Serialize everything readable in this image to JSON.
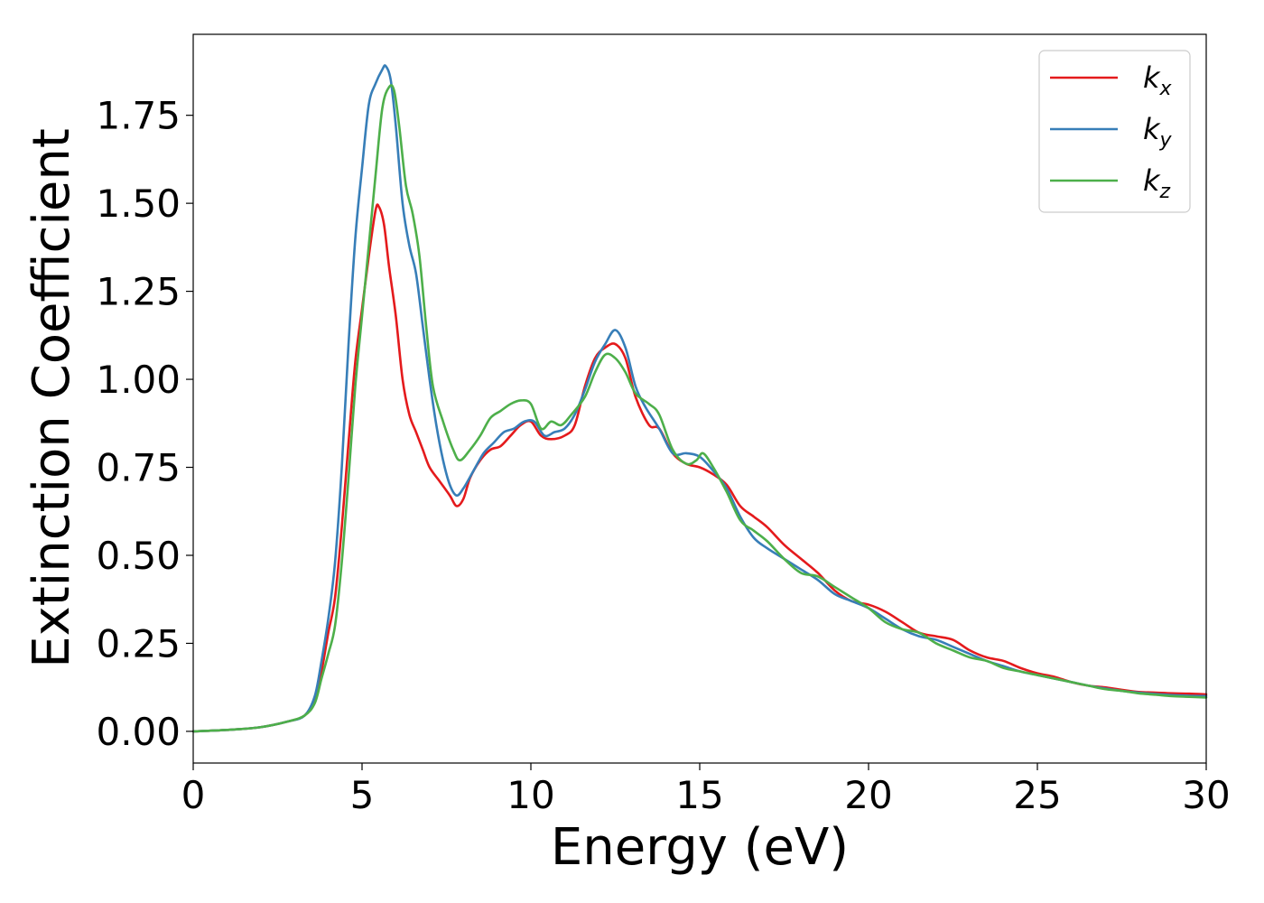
{
  "chart_data": {
    "type": "line",
    "title": "",
    "xlabel": "Energy (eV)",
    "ylabel": "Extinction Coefficient",
    "xlim": [
      0,
      30
    ],
    "ylim": [
      -0.09,
      1.98
    ],
    "xticks": [
      0,
      5,
      10,
      15,
      20,
      25,
      30
    ],
    "yticks": [
      0.0,
      0.25,
      0.5,
      0.75,
      1.0,
      1.25,
      1.5,
      1.75
    ],
    "ytick_labels": [
      "0.00",
      "0.25",
      "0.50",
      "0.75",
      "1.00",
      "1.25",
      "1.50",
      "1.75"
    ],
    "grid": false,
    "legend_position": "top-right",
    "series": [
      {
        "name": "k",
        "subscript": "x",
        "color": "#e41a1c",
        "points": [
          [
            0,
            0
          ],
          [
            1,
            0.004
          ],
          [
            2,
            0.012
          ],
          [
            2.8,
            0.028
          ],
          [
            3.3,
            0.045
          ],
          [
            3.6,
            0.09
          ],
          [
            3.8,
            0.17
          ],
          [
            4,
            0.28
          ],
          [
            4.2,
            0.38
          ],
          [
            4.4,
            0.58
          ],
          [
            4.6,
            0.82
          ],
          [
            4.8,
            1.05
          ],
          [
            5,
            1.2
          ],
          [
            5.2,
            1.35
          ],
          [
            5.4,
            1.48
          ],
          [
            5.5,
            1.49
          ],
          [
            5.65,
            1.44
          ],
          [
            5.8,
            1.32
          ],
          [
            6,
            1.18
          ],
          [
            6.2,
            1.0
          ],
          [
            6.4,
            0.9
          ],
          [
            6.6,
            0.85
          ],
          [
            6.8,
            0.8
          ],
          [
            7,
            0.75
          ],
          [
            7.3,
            0.71
          ],
          [
            7.6,
            0.67
          ],
          [
            7.8,
            0.64
          ],
          [
            8,
            0.66
          ],
          [
            8.2,
            0.72
          ],
          [
            8.5,
            0.77
          ],
          [
            8.8,
            0.8
          ],
          [
            9.1,
            0.81
          ],
          [
            9.4,
            0.84
          ],
          [
            9.7,
            0.87
          ],
          [
            10,
            0.88
          ],
          [
            10.3,
            0.84
          ],
          [
            10.6,
            0.83
          ],
          [
            11,
            0.84
          ],
          [
            11.3,
            0.87
          ],
          [
            11.6,
            0.98
          ],
          [
            11.9,
            1.06
          ],
          [
            12.2,
            1.09
          ],
          [
            12.5,
            1.1
          ],
          [
            12.8,
            1.06
          ],
          [
            13.1,
            0.95
          ],
          [
            13.5,
            0.87
          ],
          [
            13.8,
            0.86
          ],
          [
            14.2,
            0.79
          ],
          [
            14.6,
            0.76
          ],
          [
            15,
            0.75
          ],
          [
            15.4,
            0.73
          ],
          [
            15.8,
            0.7
          ],
          [
            16.2,
            0.64
          ],
          [
            16.6,
            0.61
          ],
          [
            17,
            0.58
          ],
          [
            17.5,
            0.53
          ],
          [
            18,
            0.49
          ],
          [
            18.5,
            0.45
          ],
          [
            19,
            0.4
          ],
          [
            19.5,
            0.37
          ],
          [
            20,
            0.36
          ],
          [
            20.5,
            0.34
          ],
          [
            21,
            0.31
          ],
          [
            21.5,
            0.28
          ],
          [
            22,
            0.27
          ],
          [
            22.5,
            0.26
          ],
          [
            23,
            0.23
          ],
          [
            23.5,
            0.21
          ],
          [
            24,
            0.2
          ],
          [
            24.5,
            0.18
          ],
          [
            25,
            0.165
          ],
          [
            25.5,
            0.155
          ],
          [
            26,
            0.14
          ],
          [
            26.5,
            0.13
          ],
          [
            27,
            0.125
          ],
          [
            27.5,
            0.118
          ],
          [
            28,
            0.112
          ],
          [
            28.5,
            0.11
          ],
          [
            29,
            0.108
          ],
          [
            29.5,
            0.107
          ],
          [
            30,
            0.105
          ]
        ]
      },
      {
        "name": "k",
        "subscript": "y",
        "color": "#377eb8",
        "points": [
          [
            0,
            0
          ],
          [
            1,
            0.004
          ],
          [
            2,
            0.012
          ],
          [
            2.8,
            0.028
          ],
          [
            3.3,
            0.045
          ],
          [
            3.6,
            0.1
          ],
          [
            3.8,
            0.2
          ],
          [
            4,
            0.32
          ],
          [
            4.2,
            0.48
          ],
          [
            4.4,
            0.75
          ],
          [
            4.6,
            1.1
          ],
          [
            4.8,
            1.4
          ],
          [
            5,
            1.6
          ],
          [
            5.2,
            1.78
          ],
          [
            5.4,
            1.84
          ],
          [
            5.6,
            1.88
          ],
          [
            5.7,
            1.89
          ],
          [
            5.85,
            1.85
          ],
          [
            6,
            1.72
          ],
          [
            6.2,
            1.5
          ],
          [
            6.4,
            1.38
          ],
          [
            6.6,
            1.3
          ],
          [
            6.8,
            1.15
          ],
          [
            7,
            1.0
          ],
          [
            7.2,
            0.87
          ],
          [
            7.4,
            0.77
          ],
          [
            7.6,
            0.7
          ],
          [
            7.8,
            0.67
          ],
          [
            8,
            0.69
          ],
          [
            8.3,
            0.74
          ],
          [
            8.6,
            0.79
          ],
          [
            8.9,
            0.82
          ],
          [
            9.2,
            0.85
          ],
          [
            9.5,
            0.86
          ],
          [
            9.8,
            0.88
          ],
          [
            10.1,
            0.88
          ],
          [
            10.4,
            0.84
          ],
          [
            10.7,
            0.85
          ],
          [
            11,
            0.86
          ],
          [
            11.3,
            0.9
          ],
          [
            11.6,
            0.97
          ],
          [
            11.9,
            1.05
          ],
          [
            12.2,
            1.1
          ],
          [
            12.5,
            1.14
          ],
          [
            12.8,
            1.09
          ],
          [
            13.1,
            0.98
          ],
          [
            13.4,
            0.92
          ],
          [
            13.8,
            0.86
          ],
          [
            14.2,
            0.79
          ],
          [
            14.6,
            0.79
          ],
          [
            15,
            0.78
          ],
          [
            15.4,
            0.74
          ],
          [
            15.8,
            0.69
          ],
          [
            16.2,
            0.61
          ],
          [
            16.6,
            0.55
          ],
          [
            17,
            0.52
          ],
          [
            17.5,
            0.49
          ],
          [
            18,
            0.46
          ],
          [
            18.5,
            0.43
          ],
          [
            19,
            0.39
          ],
          [
            19.5,
            0.37
          ],
          [
            20,
            0.35
          ],
          [
            20.5,
            0.32
          ],
          [
            21,
            0.29
          ],
          [
            21.5,
            0.27
          ],
          [
            22,
            0.26
          ],
          [
            22.5,
            0.24
          ],
          [
            23,
            0.22
          ],
          [
            23.5,
            0.2
          ],
          [
            24,
            0.185
          ],
          [
            24.5,
            0.17
          ],
          [
            25,
            0.16
          ],
          [
            25.5,
            0.15
          ],
          [
            26,
            0.14
          ],
          [
            26.5,
            0.13
          ],
          [
            27,
            0.122
          ],
          [
            27.5,
            0.115
          ],
          [
            28,
            0.11
          ],
          [
            28.5,
            0.106
          ],
          [
            29,
            0.103
          ],
          [
            29.5,
            0.101
          ],
          [
            30,
            0.1
          ]
        ]
      },
      {
        "name": "k",
        "subscript": "z",
        "color": "#4daf4a",
        "points": [
          [
            0,
            0
          ],
          [
            1,
            0.004
          ],
          [
            2,
            0.012
          ],
          [
            2.8,
            0.028
          ],
          [
            3.3,
            0.045
          ],
          [
            3.6,
            0.08
          ],
          [
            3.8,
            0.15
          ],
          [
            4,
            0.22
          ],
          [
            4.2,
            0.3
          ],
          [
            4.4,
            0.48
          ],
          [
            4.6,
            0.72
          ],
          [
            4.8,
            0.98
          ],
          [
            5,
            1.18
          ],
          [
            5.2,
            1.38
          ],
          [
            5.4,
            1.58
          ],
          [
            5.6,
            1.77
          ],
          [
            5.8,
            1.83
          ],
          [
            5.95,
            1.82
          ],
          [
            6.1,
            1.72
          ],
          [
            6.3,
            1.55
          ],
          [
            6.5,
            1.47
          ],
          [
            6.7,
            1.35
          ],
          [
            6.9,
            1.15
          ],
          [
            7.1,
            0.98
          ],
          [
            7.4,
            0.88
          ],
          [
            7.7,
            0.8
          ],
          [
            7.9,
            0.77
          ],
          [
            8.2,
            0.8
          ],
          [
            8.5,
            0.84
          ],
          [
            8.8,
            0.89
          ],
          [
            9.1,
            0.91
          ],
          [
            9.4,
            0.93
          ],
          [
            9.7,
            0.94
          ],
          [
            10,
            0.93
          ],
          [
            10.3,
            0.86
          ],
          [
            10.6,
            0.88
          ],
          [
            10.9,
            0.87
          ],
          [
            11.2,
            0.9
          ],
          [
            11.6,
            0.95
          ],
          [
            11.9,
            1.02
          ],
          [
            12.2,
            1.07
          ],
          [
            12.5,
            1.06
          ],
          [
            12.8,
            1.02
          ],
          [
            13.1,
            0.96
          ],
          [
            13.5,
            0.93
          ],
          [
            13.8,
            0.9
          ],
          [
            14.2,
            0.8
          ],
          [
            14.6,
            0.76
          ],
          [
            14.9,
            0.77
          ],
          [
            15.1,
            0.79
          ],
          [
            15.4,
            0.75
          ],
          [
            15.8,
            0.68
          ],
          [
            16.2,
            0.6
          ],
          [
            16.6,
            0.57
          ],
          [
            17,
            0.54
          ],
          [
            17.5,
            0.49
          ],
          [
            18,
            0.45
          ],
          [
            18.5,
            0.44
          ],
          [
            19,
            0.41
          ],
          [
            19.5,
            0.38
          ],
          [
            20,
            0.35
          ],
          [
            20.5,
            0.31
          ],
          [
            21,
            0.29
          ],
          [
            21.5,
            0.28
          ],
          [
            22,
            0.25
          ],
          [
            22.5,
            0.23
          ],
          [
            23,
            0.21
          ],
          [
            23.5,
            0.2
          ],
          [
            24,
            0.18
          ],
          [
            24.5,
            0.17
          ],
          [
            25,
            0.16
          ],
          [
            25.5,
            0.15
          ],
          [
            26,
            0.14
          ],
          [
            26.5,
            0.13
          ],
          [
            27,
            0.12
          ],
          [
            27.5,
            0.115
          ],
          [
            28,
            0.108
          ],
          [
            28.5,
            0.104
          ],
          [
            29,
            0.1
          ],
          [
            29.5,
            0.098
          ],
          [
            30,
            0.096
          ]
        ]
      }
    ]
  }
}
